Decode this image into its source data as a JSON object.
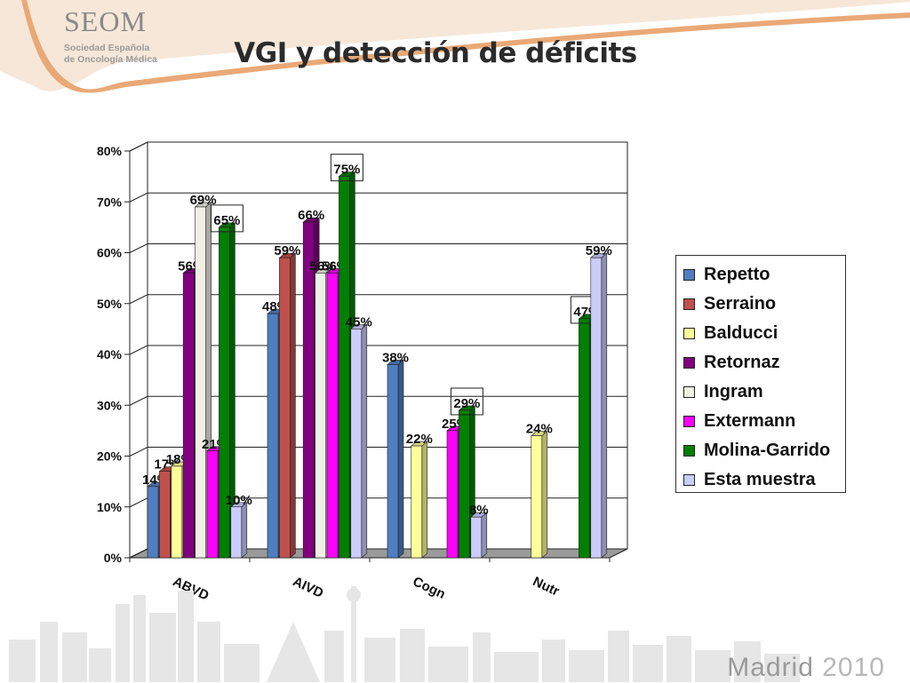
{
  "header": {
    "logo_title": "SEOM",
    "logo_sub_1": "Sociedad Española",
    "logo_sub_2": "de Oncología Médica",
    "slide_title": "VGI y detección de déficits"
  },
  "footer": {
    "city": "Madrid",
    "year": "2010"
  },
  "colors": {
    "Repetto": "#4f7fc0",
    "Serraino": "#c0504d",
    "Balducci": "#ffff99",
    "Retornaz": "#800080",
    "Ingram": "#f0f0e6",
    "Extermann": "#ff00ff",
    "Molina-Garrido": "#008000",
    "Esta muestra": "#ccccff"
  },
  "chart_data": {
    "type": "bar",
    "categories": [
      "ABVD",
      "AIVD",
      "Cogn",
      "Nutr"
    ],
    "series": [
      {
        "name": "Repetto",
        "values": [
          14,
          48,
          38,
          null
        ]
      },
      {
        "name": "Serraino",
        "values": [
          17,
          59,
          null,
          null
        ]
      },
      {
        "name": "Balducci",
        "values": [
          18,
          null,
          22,
          24
        ]
      },
      {
        "name": "Retornaz",
        "values": [
          56,
          66,
          null,
          null
        ]
      },
      {
        "name": "Ingram",
        "values": [
          69,
          56,
          null,
          null
        ]
      },
      {
        "name": "Extermann",
        "values": [
          21,
          56,
          25,
          null
        ]
      },
      {
        "name": "Molina-Garrido",
        "values": [
          65,
          75,
          29,
          47
        ]
      },
      {
        "name": "Esta muestra",
        "values": [
          10,
          45,
          8,
          59
        ]
      }
    ],
    "value_labels": [
      [
        "14%",
        "48%",
        "38%",
        ""
      ],
      [
        "17%",
        "59%",
        "",
        ""
      ],
      [
        "18%",
        "",
        "22%",
        "24%"
      ],
      [
        "56%",
        "66%",
        "",
        ""
      ],
      [
        "69%",
        "56%",
        "",
        ""
      ],
      [
        "21%",
        "56%",
        "25%",
        ""
      ],
      [
        "65%",
        "75%",
        "29%",
        "47%"
      ],
      [
        "10%",
        "45%",
        "8%",
        "59%"
      ]
    ],
    "highlighted": [
      [
        6,
        0
      ],
      [
        6,
        1
      ],
      [
        6,
        2
      ],
      [
        6,
        3
      ]
    ],
    "yticks": [
      "0%",
      "10%",
      "20%",
      "30%",
      "40%",
      "50%",
      "60%",
      "70%",
      "80%"
    ],
    "ylim": [
      0,
      80
    ],
    "grid": true,
    "legend": "right",
    "title": "",
    "xlabel": "",
    "ylabel": ""
  }
}
